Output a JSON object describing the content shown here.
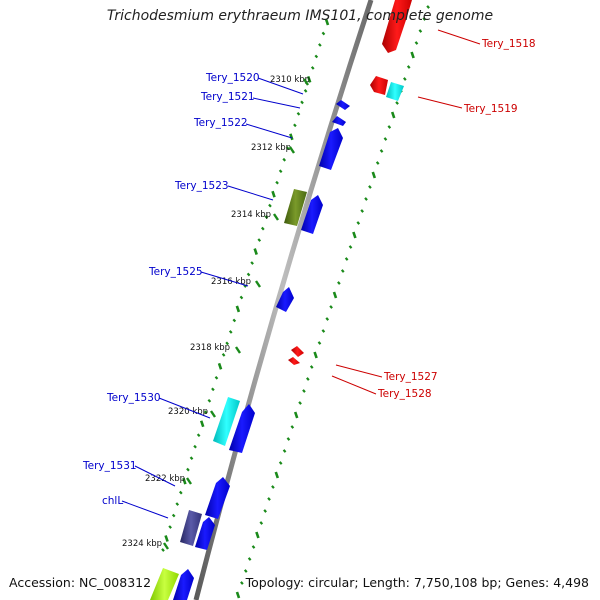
{
  "title": "Trichodesmium erythraeum IMS101, complete genome",
  "footer": {
    "accession": "Accession: NC_008312",
    "summary": "Topology: circular; Length: 7,750,108 bp; Genes: 4,498"
  },
  "colors": {
    "forward_cds": "#0000ee",
    "reverse_cds": "#ee0000",
    "rna": "#00e8e8",
    "olive": "#5a7a18",
    "purple": "#3c3c8c",
    "lime": "#a8f000",
    "tick": "#1a8a1a",
    "backbone": "#888888",
    "forward_label": "#0000cc",
    "reverse_label": "#cc0000"
  },
  "kbp_ticks": [
    "2310 kbp",
    "2312 kbp",
    "2314 kbp",
    "2316 kbp",
    "2318 kbp",
    "2320 kbp",
    "2322 kbp",
    "2324 kbp"
  ],
  "forward_labels": [
    "Tery_1520",
    "Tery_1521",
    "Tery_1522",
    "Tery_1523",
    "Tery_1525",
    "Tery_1530",
    "Tery_1531",
    "chlL"
  ],
  "reverse_labels": [
    "Tery_1518",
    "Tery_1519",
    "Tery_1527",
    "Tery_1528"
  ]
}
